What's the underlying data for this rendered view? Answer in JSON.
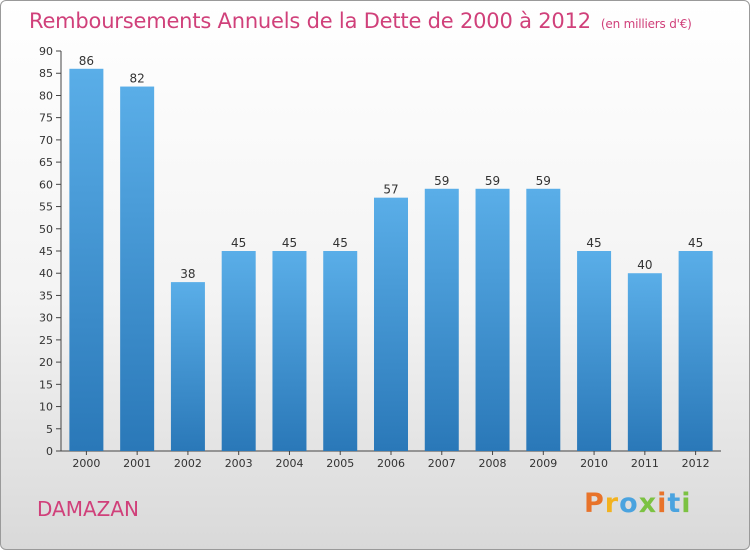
{
  "title": "Remboursements Annuels de la Dette de 2000 à 2012",
  "unit_note": "(en milliers d'€)",
  "commune": "DAMAZAN",
  "logo": {
    "text": "Proxiti",
    "colors": [
      "#e8732a",
      "#f2b21f",
      "#4aa3df",
      "#7cc242",
      "#e8732a",
      "#4aa3df",
      "#7cc242"
    ]
  },
  "colors": {
    "bar_top": "#5aaee8",
    "bar_bottom": "#2a78b8",
    "title": "#d0407a"
  },
  "chart_data": {
    "type": "bar",
    "categories": [
      "2000",
      "2001",
      "2002",
      "2003",
      "2004",
      "2005",
      "2006",
      "2007",
      "2008",
      "2009",
      "2010",
      "2011",
      "2012"
    ],
    "values": [
      86,
      82,
      38,
      45,
      45,
      45,
      57,
      59,
      59,
      59,
      45,
      40,
      45
    ],
    "ylim": [
      0,
      90
    ],
    "yticks": [
      0,
      5,
      10,
      15,
      20,
      25,
      30,
      35,
      40,
      45,
      50,
      55,
      60,
      65,
      70,
      75,
      80,
      85,
      90
    ],
    "title": "Remboursements Annuels de la Dette de 2000 à 2012",
    "xlabel": "",
    "ylabel": "",
    "grid": false
  }
}
